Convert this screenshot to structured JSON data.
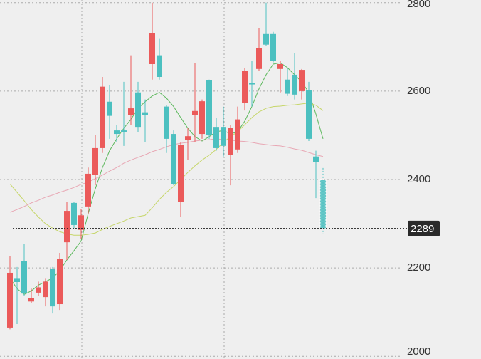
{
  "chart_data": {
    "type": "candlestick",
    "ylim": [
      1994,
      2806
    ],
    "yticks": [
      2000,
      2200,
      2400,
      2600,
      2800
    ],
    "grid": true,
    "up_color": "#eb5a5a",
    "down_color": "#4cc0c0",
    "last_price": 2289,
    "open": [
      2065,
      2177,
      2216,
      2124,
      2144,
      2134,
      2197,
      2118,
      2258,
      2347,
      2286,
      2339,
      2411,
      2471,
      2576,
      2511,
      2511,
      2545,
      2597,
      2552,
      2661,
      2681,
      2565,
      2503,
      2350,
      2489,
      2545,
      2503,
      2624,
      2519,
      2519,
      2455,
      2468,
      2573,
      2618,
      2650,
      2729,
      2729,
      2650,
      2626,
      2637,
      2600,
      2603,
      2452,
      2400
    ],
    "high": [
      2226,
      2202,
      2255,
      2153,
      2169,
      2177,
      2202,
      2234,
      2350,
      2350,
      2334,
      2427,
      2500,
      2632,
      2613,
      2524,
      2621,
      2681,
      2621,
      2581,
      2800,
      2718,
      2568,
      2511,
      2484,
      2516,
      2664,
      2581,
      2626,
      2540,
      2565,
      2524,
      2565,
      2653,
      2669,
      2742,
      2800,
      2734,
      2669,
      2653,
      2686,
      2650,
      2621,
      2465,
      2426
    ],
    "low": [
      2061,
      2073,
      2137,
      2121,
      2137,
      2113,
      2097,
      2105,
      2218,
      2290,
      2266,
      2323,
      2387,
      2460,
      2492,
      2484,
      2476,
      2524,
      2508,
      2484,
      2626,
      2626,
      2460,
      2387,
      2315,
      2444,
      2484,
      2492,
      2492,
      2465,
      2452,
      2387,
      2460,
      2556,
      2565,
      2645,
      2702,
      2665,
      2597,
      2589,
      2581,
      2581,
      2487,
      2358,
      2277
    ],
    "close": [
      2189,
      2168,
      2142,
      2132,
      2156,
      2169,
      2113,
      2221,
      2329,
      2297,
      2319,
      2413,
      2471,
      2610,
      2544,
      2503,
      2508,
      2561,
      2519,
      2545,
      2731,
      2632,
      2492,
      2390,
      2479,
      2498,
      2555,
      2577,
      2500,
      2471,
      2476,
      2516,
      2536,
      2645,
      2615,
      2697,
      2705,
      2669,
      2661,
      2594,
      2592,
      2648,
      2492,
      2440,
      2289
    ],
    "series": [
      {
        "color": "#5cb85c",
        "values": [
          2177,
          2153,
          2140,
          2148,
          2161,
          2169,
          2177,
          2194,
          2218,
          2239,
          2261,
          2323,
          2379,
          2427,
          2465,
          2492,
          2516,
          2536,
          2561,
          2576,
          2589,
          2597,
          2584,
          2565,
          2540,
          2516,
          2497,
          2487,
          2497,
          2508,
          2511,
          2503,
          2508,
          2532,
          2565,
          2605,
          2637,
          2661,
          2664,
          2653,
          2637,
          2621,
          2597,
          2548,
          2492
        ]
      },
      {
        "color": "#c6d66a",
        "values": [
          2390,
          2371,
          2352,
          2332,
          2315,
          2300,
          2290,
          2282,
          2277,
          2274,
          2274,
          2276,
          2279,
          2287,
          2294,
          2300,
          2306,
          2313,
          2316,
          2319,
          2336,
          2355,
          2371,
          2384,
          2400,
          2416,
          2431,
          2444,
          2455,
          2468,
          2484,
          2497,
          2508,
          2524,
          2540,
          2553,
          2561,
          2565,
          2566,
          2568,
          2569,
          2571,
          2573,
          2568,
          2556
        ]
      },
      {
        "color": "#e8a7b4",
        "values": [
          2326,
          2332,
          2339,
          2347,
          2353,
          2360,
          2365,
          2371,
          2376,
          2382,
          2389,
          2394,
          2402,
          2410,
          2419,
          2427,
          2437,
          2444,
          2450,
          2456,
          2463,
          2468,
          2474,
          2479,
          2482,
          2484,
          2487,
          2489,
          2490,
          2492,
          2490,
          2489,
          2487,
          2486,
          2484,
          2481,
          2479,
          2477,
          2476,
          2473,
          2469,
          2466,
          2461,
          2456,
          2452
        ]
      }
    ]
  }
}
